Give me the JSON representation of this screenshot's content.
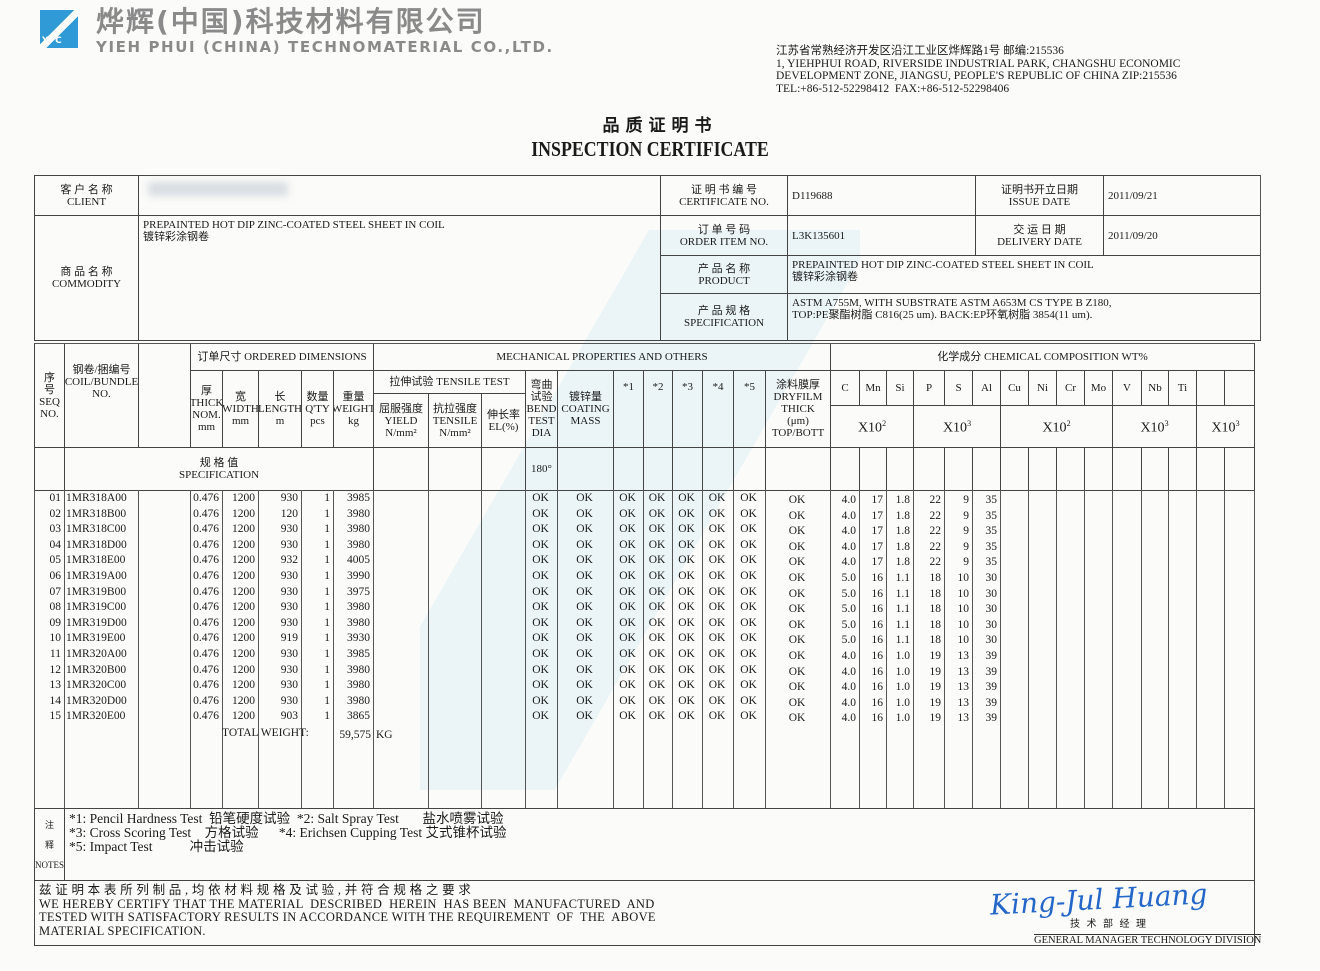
{
  "header": {
    "logo_text": "YPC",
    "company_cn": "烨辉(中国)科技材料有限公司",
    "company_en": "YIEH PHUI (CHINA) TECHNOMATERIAL CO.,LTD.",
    "address": [
      "江苏省常熟经济开发区沿江工业区烨辉路1号 邮编:215536",
      "1, YIEHPHUI ROAD, RIVERSIDE INDUSTRIAL PARK, CHANGSHU ECONOMIC",
      "DEVELOPMENT ZONE, JIANGSU, PEOPLE'S REPUBLIC OF CHINA ZIP:215536",
      "TEL:+86-512-52298412  FAX:+86-512-52298406"
    ],
    "title_cn": "品质证明书",
    "title_en": "INSPECTION CERTIFICATE"
  },
  "info": {
    "client_label_cn": "客 户 名 称",
    "client_label_en": "CLIENT",
    "commodity_label_cn": "商 品 名 称",
    "commodity_label_en": "COMMODITY",
    "commodity_value_en": "PREPAINTED HOT DIP ZINC-COATED STEEL SHEET IN COIL",
    "commodity_value_cn": "镀锌彩涂钢卷",
    "cert_label_cn": "证 明 书 编 号",
    "cert_label_en": "CERTIFICATE NO.",
    "cert_value": "D119688",
    "issue_label_cn": "证明书开立日期",
    "issue_label_en": "ISSUE DATE",
    "issue_value": "2011/09/21",
    "order_label_cn": "订 单 号 码",
    "order_label_en": "ORDER ITEM NO.",
    "order_value": "L3K135601",
    "delivery_label_cn": "交 运 日 期",
    "delivery_label_en": "DELIVERY DATE",
    "delivery_value": "2011/09/20",
    "product_label_cn": "产 品 名 称",
    "product_label_en": "PRODUCT",
    "product_value_en": "PREPAINTED HOT DIP ZINC-COATED STEEL SHEET IN COIL",
    "product_value_cn": "镀锌彩涂钢卷",
    "spec_label_cn": "产 品 规 格",
    "spec_label_en": "SPECIFICATION",
    "spec_value_1": "ASTM A755M, WITH SUBSTRATE ASTM A653M CS TYPE B Z180,",
    "spec_value_2": "TOP:PE聚酯树脂 C816(25 um).  BACK:EP环氧树脂 3854(11 um)."
  },
  "table": {
    "seq": [
      "序",
      "号",
      "SEQ",
      "NO."
    ],
    "coil": [
      "钢卷/捆编号",
      "COIL/BUNDLE",
      "NO."
    ],
    "ordered": "订单尺寸 ORDERED DIMENSIONS",
    "mechanical": "MECHANICAL PROPERTIES AND OTHERS",
    "chemical": "化学成分 CHEMICAL COMPOSITION WT%",
    "dims": [
      [
        "厚",
        "THICK",
        "NOM.",
        "mm"
      ],
      [
        "宽",
        "WIDTH",
        "",
        "mm"
      ],
      [
        "长",
        "LENGTH",
        "",
        "m"
      ],
      [
        "数量",
        "Q'TY",
        "",
        "pcs"
      ],
      [
        "重量",
        "WEIGHT",
        "",
        "kg"
      ]
    ],
    "tensile": "拉伸试验 TENSILE TEST",
    "tensile_cols": [
      [
        "屈服强度",
        "YIELD",
        "N/mm²"
      ],
      [
        "抗拉强度",
        "TENSILE",
        "N/mm²"
      ],
      [
        "伸长率",
        "EL(%)",
        ""
      ]
    ],
    "bend": [
      "弯曲",
      "试验",
      "BEND",
      "TEST",
      "DIA"
    ],
    "coating": [
      "镀锌量",
      "COATING",
      "MASS"
    ],
    "stars": [
      "*1",
      "*2",
      "*3",
      "*4",
      "*5"
    ],
    "dryfilm": [
      "涂料膜厚",
      "DRYFILM",
      "THICK",
      "(μm)",
      "TOP/BOTT"
    ],
    "elements": [
      "C",
      "Mn",
      "Si",
      "P",
      "S",
      "Al",
      "Cu",
      "Ni",
      "Cr",
      "Mo",
      "V",
      "Nb",
      "Ti",
      "",
      ""
    ],
    "multipliers": [
      {
        "base": "X10",
        "exp": "2"
      },
      {
        "base": "X10",
        "exp": "3"
      },
      {
        "base": "X10",
        "exp": "2"
      },
      {
        "base": "X10",
        "exp": "3"
      },
      {
        "base": "X10",
        "exp": "3"
      }
    ],
    "spec_label_cn": "规    格    值",
    "spec_label_en": "SPECIFICATION",
    "spec_bend": "180°",
    "rows": [
      [
        "01",
        "1MR318A00",
        "0.476",
        "1200",
        "930",
        "1",
        "3985",
        "OK",
        "OK",
        "OK",
        "OK",
        "OK",
        "OK",
        "OK",
        "OK",
        "4.0",
        "17",
        "1.8",
        "22",
        "9",
        "35"
      ],
      [
        "02",
        "1MR318B00",
        "0.476",
        "1200",
        "120",
        "1",
        "3980",
        "OK",
        "OK",
        "OK",
        "OK",
        "OK",
        "OK",
        "OK",
        "OK",
        "4.0",
        "17",
        "1.8",
        "22",
        "9",
        "35"
      ],
      [
        "03",
        "1MR318C00",
        "0.476",
        "1200",
        "930",
        "1",
        "3980",
        "OK",
        "OK",
        "OK",
        "OK",
        "OK",
        "OK",
        "OK",
        "OK",
        "4.0",
        "17",
        "1.8",
        "22",
        "9",
        "35"
      ],
      [
        "04",
        "1MR318D00",
        "0.476",
        "1200",
        "930",
        "1",
        "3980",
        "OK",
        "OK",
        "OK",
        "OK",
        "OK",
        "OK",
        "OK",
        "OK",
        "4.0",
        "17",
        "1.8",
        "22",
        "9",
        "35"
      ],
      [
        "05",
        "1MR318E00",
        "0.476",
        "1200",
        "932",
        "1",
        "4005",
        "OK",
        "OK",
        "OK",
        "OK",
        "OK",
        "OK",
        "OK",
        "OK",
        "4.0",
        "17",
        "1.8",
        "22",
        "9",
        "35"
      ],
      [
        "06",
        "1MR319A00",
        "0.476",
        "1200",
        "930",
        "1",
        "3990",
        "OK",
        "OK",
        "OK",
        "OK",
        "OK",
        "OK",
        "OK",
        "OK",
        "5.0",
        "16",
        "1.1",
        "18",
        "10",
        "30"
      ],
      [
        "07",
        "1MR319B00",
        "0.476",
        "1200",
        "930",
        "1",
        "3975",
        "OK",
        "OK",
        "OK",
        "OK",
        "OK",
        "OK",
        "OK",
        "OK",
        "5.0",
        "16",
        "1.1",
        "18",
        "10",
        "30"
      ],
      [
        "08",
        "1MR319C00",
        "0.476",
        "1200",
        "930",
        "1",
        "3980",
        "OK",
        "OK",
        "OK",
        "OK",
        "OK",
        "OK",
        "OK",
        "OK",
        "5.0",
        "16",
        "1.1",
        "18",
        "10",
        "30"
      ],
      [
        "09",
        "1MR319D00",
        "0.476",
        "1200",
        "930",
        "1",
        "3980",
        "OK",
        "OK",
        "OK",
        "OK",
        "OK",
        "OK",
        "OK",
        "OK",
        "5.0",
        "16",
        "1.1",
        "18",
        "10",
        "30"
      ],
      [
        "10",
        "1MR319E00",
        "0.476",
        "1200",
        "919",
        "1",
        "3930",
        "OK",
        "OK",
        "OK",
        "OK",
        "OK",
        "OK",
        "OK",
        "OK",
        "5.0",
        "16",
        "1.1",
        "18",
        "10",
        "30"
      ],
      [
        "11",
        "1MR320A00",
        "0.476",
        "1200",
        "930",
        "1",
        "3985",
        "OK",
        "OK",
        "OK",
        "OK",
        "OK",
        "OK",
        "OK",
        "OK",
        "4.0",
        "16",
        "1.0",
        "19",
        "13",
        "39"
      ],
      [
        "12",
        "1MR320B00",
        "0.476",
        "1200",
        "930",
        "1",
        "3980",
        "OK",
        "OK",
        "OK",
        "OK",
        "OK",
        "OK",
        "OK",
        "OK",
        "4.0",
        "16",
        "1.0",
        "19",
        "13",
        "39"
      ],
      [
        "13",
        "1MR320C00",
        "0.476",
        "1200",
        "930",
        "1",
        "3980",
        "OK",
        "OK",
        "OK",
        "OK",
        "OK",
        "OK",
        "OK",
        "OK",
        "4.0",
        "16",
        "1.0",
        "19",
        "13",
        "39"
      ],
      [
        "14",
        "1MR320D00",
        "0.476",
        "1200",
        "930",
        "1",
        "3980",
        "OK",
        "OK",
        "OK",
        "OK",
        "OK",
        "OK",
        "OK",
        "OK",
        "4.0",
        "16",
        "1.0",
        "19",
        "13",
        "39"
      ],
      [
        "15",
        "1MR320E00",
        "0.476",
        "1200",
        "903",
        "1",
        "3865",
        "OK",
        "OK",
        "OK",
        "OK",
        "OK",
        "OK",
        "OK",
        "OK",
        "4.0",
        "16",
        "1.0",
        "19",
        "13",
        "39"
      ]
    ],
    "total_label": "TOTAL WEIGHT:",
    "total_value": "59,575",
    "total_unit": "KG"
  },
  "notes": {
    "label": [
      "注",
      "释",
      "NOTES"
    ],
    "lines": [
      "*1: Pencil Hardness Test  铅笔硬度试验  *2: Salt Spray Test       盐水喷雾试验",
      "*3: Cross Scoring Test    方格试验      *4: Erichsen Cupping Test 艾式锥杯试验",
      "*5: Impact Test           冲击试验"
    ]
  },
  "certify": {
    "cn": "兹 证 明 本 表 所 列 制 品 , 均 依 材 料 规 格 及 试 验 , 并 符 合 规 格 之 要 求",
    "en": [
      "WE HEREBY CERTIFY THAT THE MATERIAL  DESCRIBED  HEREIN  HAS BEEN  MANUFACTURED  AND",
      "TESTED WITH SATISFACTORY RESULTS IN ACCORDANCE WITH THE REQUIREMENT  OF  THE  ABOVE",
      "MATERIAL SPECIFICATION."
    ]
  },
  "signature": {
    "handwritten": "King-Jul Huang",
    "title_cn": "技  术  部  经  理",
    "title_en": "GENERAL MANAGER TECHNOLOGY DIVISION",
    "ink_color": "#2467c9"
  }
}
